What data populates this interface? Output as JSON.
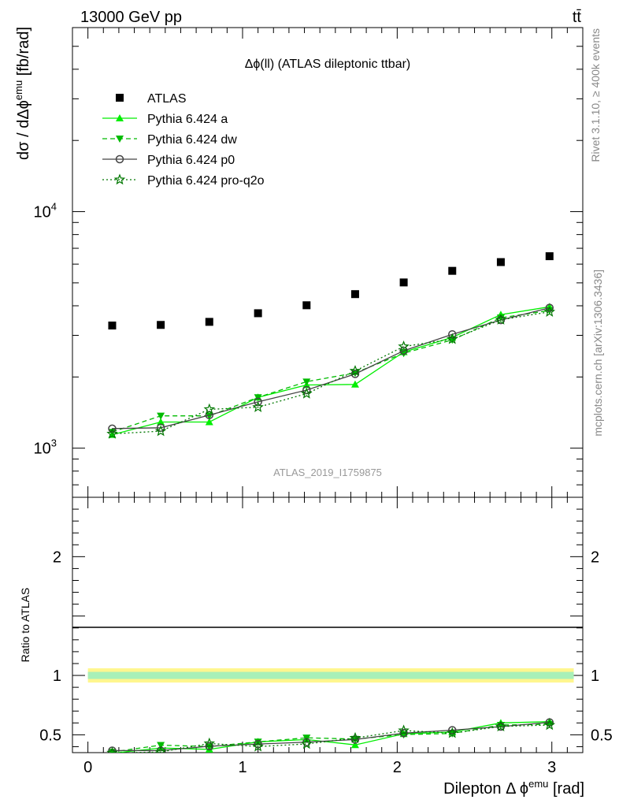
{
  "header": {
    "energy_label": "13000 GeV pp",
    "process_label": "tt̄"
  },
  "side_labels": {
    "rivet": "Rivet 3.1.10, ≥ 400k events",
    "mcplots": "mcplots.cern.ch [arXiv:1306.3436]"
  },
  "chart_data": [
    {
      "type": "scatter",
      "title": "Δϕ(ll) (ATLAS dileptonic ttbar)",
      "analysis_id": "ATLAS_2019_I1759875",
      "ylabel": "dσ / dΔϕ^emu [fb/rad]",
      "yscale": "log",
      "ylim": [
        620,
        60000
      ],
      "xlim": [
        -0.1,
        3.2
      ],
      "ytick_labels": [
        "10^3",
        "10^4"
      ],
      "legend": {
        "position": "top-left",
        "entries": [
          "ATLAS",
          "Pythia 6.424 a",
          "Pythia 6.424 dw",
          "Pythia 6.424 p0",
          "Pythia 6.424 pro-q2o"
        ]
      },
      "x": [
        0.157,
        0.471,
        0.785,
        1.1,
        1.414,
        1.728,
        2.042,
        2.356,
        2.67,
        2.985
      ],
      "series": [
        {
          "name": "ATLAS",
          "color": "#000000",
          "marker": "square",
          "line": "none",
          "values": [
            3300,
            3320,
            3420,
            3720,
            4020,
            4480,
            5020,
            5620,
            6120,
            6480
          ]
        },
        {
          "name": "Pythia 6.424 a",
          "color": "#00ee00",
          "marker": "triangle-up",
          "line": "solid",
          "values": [
            1140,
            1290,
            1290,
            1640,
            1850,
            1860,
            2550,
            2940,
            3670,
            3960
          ]
        },
        {
          "name": "Pythia 6.424 dw",
          "color": "#00bb00",
          "marker": "triangle-down",
          "line": "dashed",
          "values": [
            1170,
            1370,
            1370,
            1640,
            1910,
            2080,
            2520,
            2870,
            3560,
            3820
          ]
        },
        {
          "name": "Pythia 6.424 p0",
          "color": "#444444",
          "marker": "circle-open",
          "line": "solid",
          "values": [
            1210,
            1220,
            1380,
            1570,
            1760,
            2060,
            2580,
            3030,
            3480,
            3920
          ]
        },
        {
          "name": "Pythia 6.424 pro-q2o",
          "color": "#007700",
          "marker": "star",
          "line": "dotted",
          "values": [
            1150,
            1180,
            1460,
            1490,
            1700,
            2120,
            2690,
            2890,
            3490,
            3770
          ]
        }
      ]
    },
    {
      "type": "scatter",
      "ylabel": "Ratio to ATLAS",
      "xlabel": "Dilepton Δ ϕ^emu [rad]",
      "ylim": [
        0.35,
        2.5
      ],
      "xlim": [
        -0.1,
        3.2
      ],
      "ytick_labels": [
        "0.5",
        "1",
        "2"
      ],
      "xtick_labels": [
        "0",
        "1",
        "2",
        "3"
      ],
      "x": [
        0.157,
        0.471,
        0.785,
        1.1,
        1.414,
        1.728,
        2.042,
        2.356,
        2.67,
        2.985
      ],
      "band_inner": [
        0.97,
        1.03
      ],
      "band_outer": [
        0.94,
        1.06
      ],
      "series": [
        {
          "name": "Pythia 6.424 a",
          "values": [
            0.345,
            0.389,
            0.377,
            0.441,
            0.46,
            0.415,
            0.508,
            0.523,
            0.6,
            0.611
          ]
        },
        {
          "name": "Pythia 6.424 dw",
          "values": [
            0.355,
            0.413,
            0.401,
            0.441,
            0.475,
            0.464,
            0.502,
            0.511,
            0.582,
            0.589
          ]
        },
        {
          "name": "Pythia 6.424 p0",
          "values": [
            0.367,
            0.367,
            0.404,
            0.422,
            0.438,
            0.46,
            0.514,
            0.539,
            0.569,
            0.605
          ]
        },
        {
          "name": "Pythia 6.424 pro-q2o",
          "values": [
            0.348,
            0.355,
            0.427,
            0.401,
            0.423,
            0.473,
            0.536,
            0.514,
            0.57,
            0.582
          ]
        }
      ]
    }
  ]
}
